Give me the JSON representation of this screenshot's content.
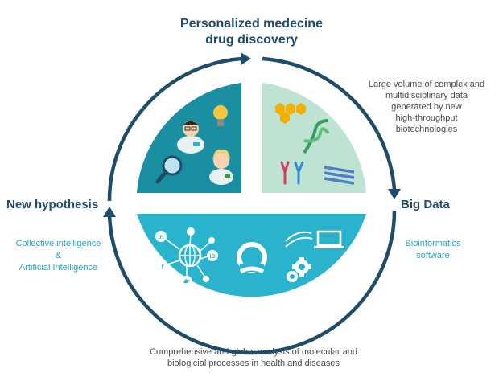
{
  "top_title": [
    "Personalized medecine",
    "drug discovery"
  ],
  "right_top_text": [
    "Large volume of complex and",
    "multidisciplinary data",
    "generated by new",
    "high-throughput",
    "biotechnologies"
  ],
  "left_label": "New hypothesis",
  "right_label": "Big Data",
  "left_sub": [
    "Collective intelligence",
    "&",
    "Artificial Intelligence"
  ],
  "right_sub": [
    "Bioinformatics",
    "software"
  ],
  "bottom_text": [
    "Comprehensive and global analysis of molecular and",
    "biologicial processes in health and diseases"
  ],
  "icon_letters": {
    "linkedin": "in",
    "facebook": "f",
    "id": "iD"
  },
  "colors": {
    "navy": "#1e4c69",
    "teal_dark": "#1a8fa1",
    "mint": "#bfe3d3",
    "cyan": "#29b3cc",
    "accent": "#25a3bf"
  }
}
